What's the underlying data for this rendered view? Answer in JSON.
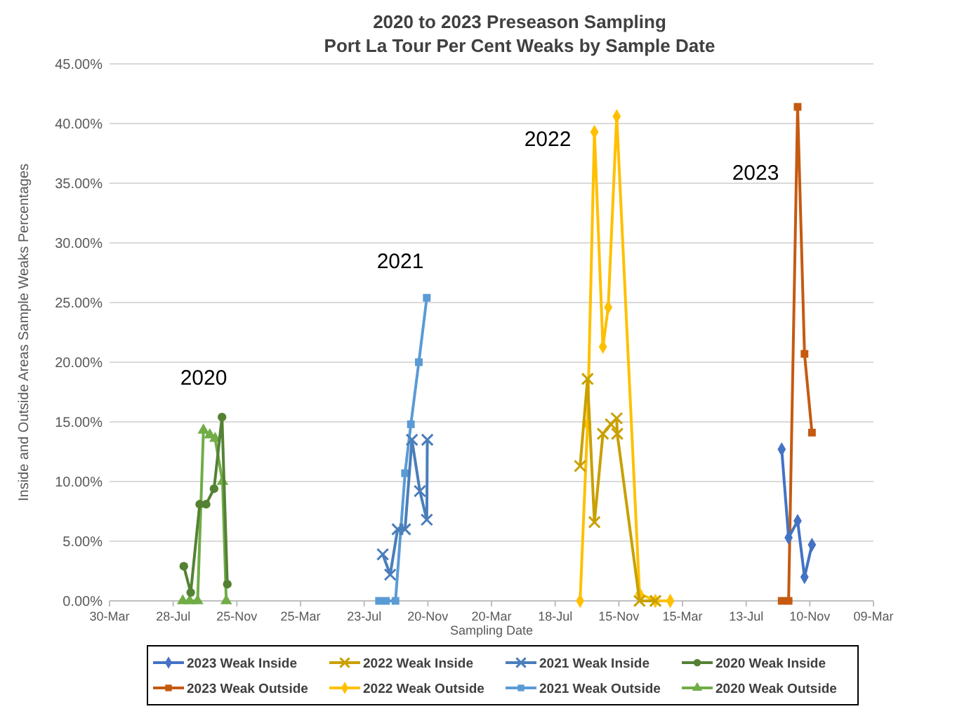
{
  "chart_data": {
    "type": "line",
    "title": "2020 to 2023 Preseason Sampling",
    "subtitle": "Port La Tour Per Cent Weaks by Sample Date",
    "xlabel": "Sampling Date",
    "ylabel": "Inside and Outside Areas Sample Weaks Percentages",
    "xlim": [
      "2020-03-30",
      "2024-03-09"
    ],
    "xticks": [
      {
        "value": "2020-03-30",
        "label": "30-Mar"
      },
      {
        "value": "2020-07-28",
        "label": "28-Jul"
      },
      {
        "value": "2020-11-25",
        "label": "25-Nov"
      },
      {
        "value": "2021-03-25",
        "label": "25-Mar"
      },
      {
        "value": "2021-07-23",
        "label": "23-Jul"
      },
      {
        "value": "2021-11-20",
        "label": "20-Nov"
      },
      {
        "value": "2022-03-20",
        "label": "20-Mar"
      },
      {
        "value": "2022-07-18",
        "label": "18-Jul"
      },
      {
        "value": "2022-11-15",
        "label": "15-Nov"
      },
      {
        "value": "2023-03-15",
        "label": "15-Mar"
      },
      {
        "value": "2023-07-13",
        "label": "13-Jul"
      },
      {
        "value": "2023-11-10",
        "label": "10-Nov"
      },
      {
        "value": "2024-03-09",
        "label": "09-Mar"
      }
    ],
    "ylim": [
      0,
      45
    ],
    "yticks": [
      {
        "value": 0,
        "label": "0.00%"
      },
      {
        "value": 5,
        "label": "5.00%"
      },
      {
        "value": 10,
        "label": "10.00%"
      },
      {
        "value": 15,
        "label": "15.00%"
      },
      {
        "value": 20,
        "label": "20.00%"
      },
      {
        "value": 25,
        "label": "25.00%"
      },
      {
        "value": 30,
        "label": "30.00%"
      },
      {
        "value": 35,
        "label": "35.00%"
      },
      {
        "value": 40,
        "label": "40.00%"
      },
      {
        "value": 45,
        "label": "45.00%"
      }
    ],
    "grid": "y",
    "legend": "bottom",
    "line_style": "solid",
    "series": [
      {
        "name": "2023 Weak Inside",
        "color": "#4472c4",
        "marker": "diamond",
        "x": [
          "2023-09-18",
          "2023-10-01",
          "2023-10-18",
          "2023-10-31",
          "2023-11-14"
        ],
        "values": [
          12.7,
          5.3,
          6.7,
          2.0,
          4.7
        ]
      },
      {
        "name": "2022 Weak Inside",
        "color": "#c9a000",
        "marker": "cross",
        "x": [
          "2022-09-03",
          "2022-09-17",
          "2022-09-30",
          "2022-10-16",
          "2022-10-31",
          "2022-11-11",
          "2022-11-12",
          "2022-12-24",
          "2023-01-23"
        ],
        "values": [
          11.3,
          18.6,
          6.6,
          14.0,
          14.8,
          15.3,
          14.0,
          0,
          0
        ]
      },
      {
        "name": "2021 Weak Inside",
        "color": "#4a7ebb",
        "marker": "cross",
        "x": [
          "2021-08-27",
          "2021-09-10",
          "2021-09-24",
          "2021-10-08",
          "2021-10-21",
          "2021-11-05",
          "2021-11-18",
          "2021-11-19"
        ],
        "values": [
          3.9,
          2.2,
          6.0,
          6.0,
          13.5,
          9.2,
          6.8,
          13.5
        ]
      },
      {
        "name": "2020 Weak Inside",
        "color": "#548235",
        "marker": "circle",
        "x": [
          "2020-08-17",
          "2020-08-30",
          "2020-09-16",
          "2020-09-28",
          "2020-10-13",
          "2020-10-28",
          "2020-11-07"
        ],
        "values": [
          2.9,
          0.7,
          8.1,
          8.1,
          9.4,
          15.4,
          1.4
        ]
      },
      {
        "name": "2023 Weak Outside",
        "color": "#c55a11",
        "marker": "square",
        "x": [
          "2023-09-18",
          "2023-10-01",
          "2023-10-18",
          "2023-10-31",
          "2023-11-14"
        ],
        "values": [
          0,
          0,
          41.4,
          20.7,
          14.1
        ]
      },
      {
        "name": "2022 Weak Outside",
        "color": "#ffc000",
        "marker": "diamond",
        "x": [
          "2022-09-03",
          "2022-09-17",
          "2022-09-30",
          "2022-10-16",
          "2022-10-26",
          "2022-11-11",
          "2022-12-24",
          "2023-01-23",
          "2023-02-20"
        ],
        "values": [
          0,
          14.8,
          39.3,
          21.3,
          24.6,
          40.6,
          0.6,
          0,
          0
        ]
      },
      {
        "name": "2021 Weak Outside",
        "color": "#5b9bd5",
        "marker": "square",
        "x": [
          "2021-08-20",
          "2021-09-02",
          "2021-09-20",
          "2021-10-08",
          "2021-10-19",
          "2021-11-03",
          "2021-11-18"
        ],
        "values": [
          0,
          0,
          0,
          10.7,
          14.8,
          20.0,
          25.4
        ]
      },
      {
        "name": "2020 Weak Outside",
        "color": "#70ad47",
        "marker": "triangle",
        "x": [
          "2020-08-15",
          "2020-08-28",
          "2020-09-12",
          "2020-09-23",
          "2020-10-05",
          "2020-10-15",
          "2020-10-29",
          "2020-11-05"
        ],
        "values": [
          0,
          0,
          0,
          14.3,
          13.9,
          13.6,
          10.0,
          0
        ]
      }
    ],
    "annotations": [
      "2020",
      "2021",
      "2022",
      "2023"
    ]
  }
}
